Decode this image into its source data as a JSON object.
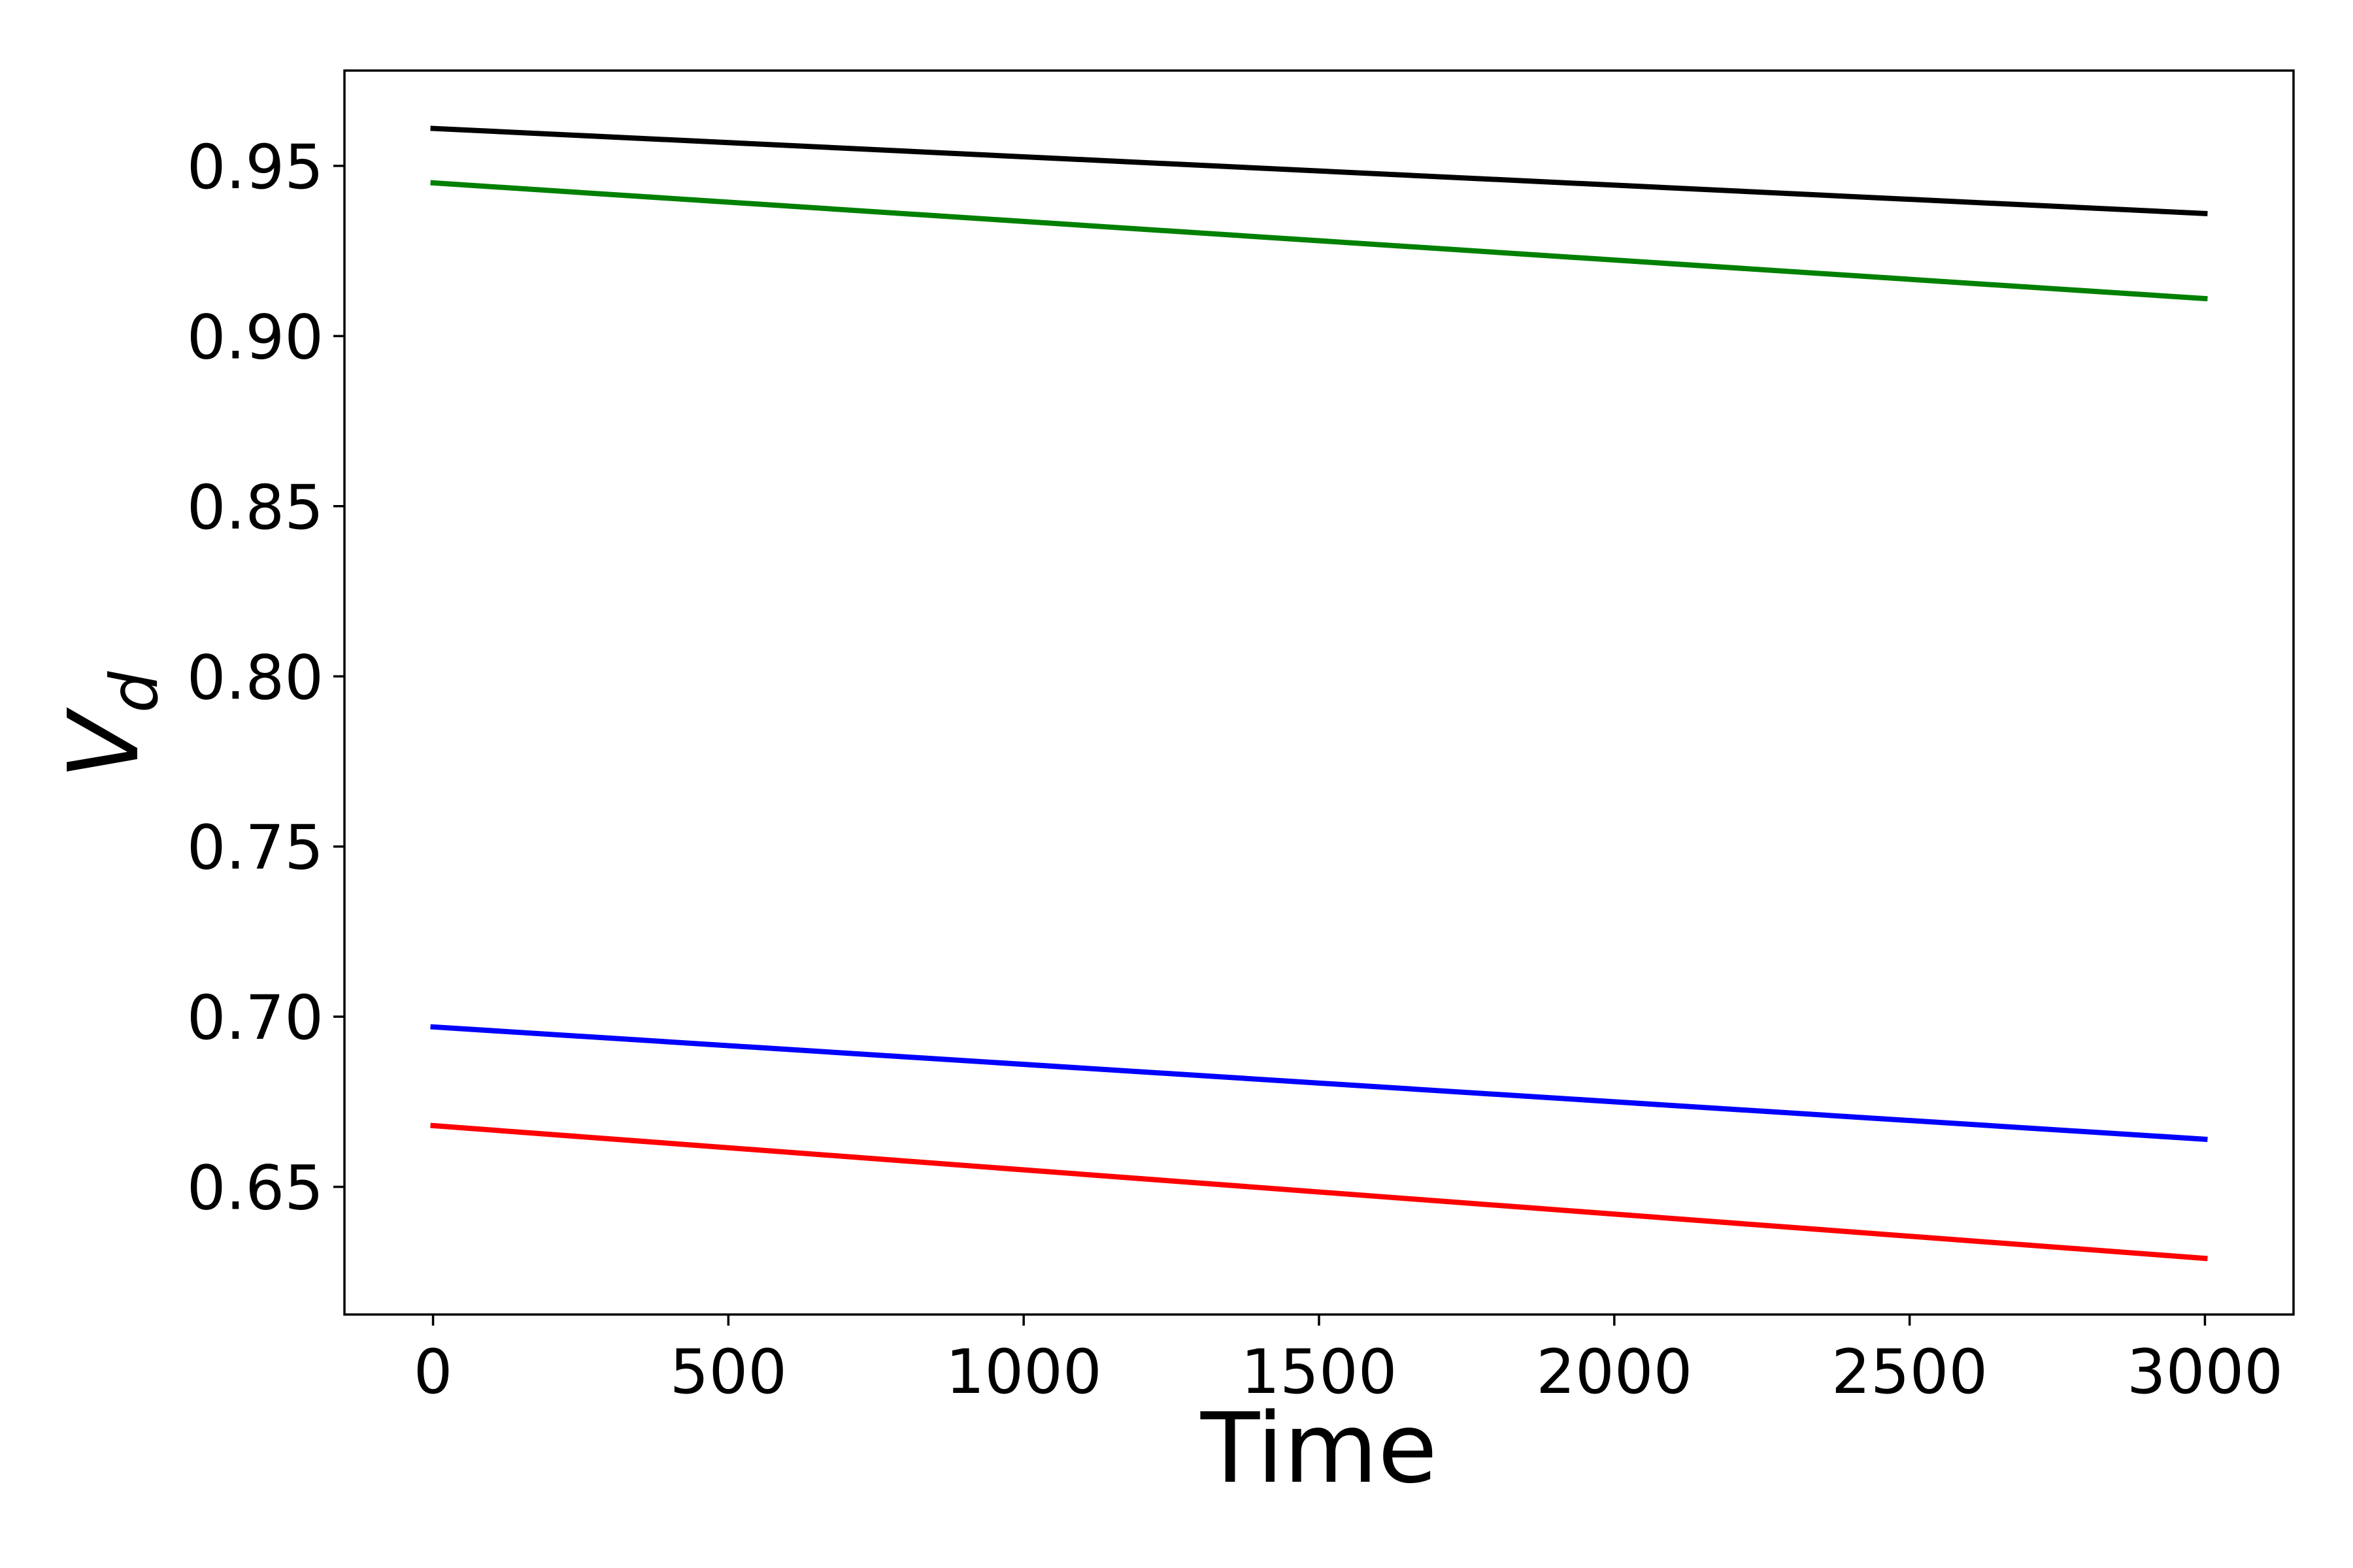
{
  "chart_data": {
    "type": "line",
    "title": "",
    "xlabel": "Time",
    "ylabel": {
      "main": "V",
      "sub": "d"
    },
    "xlim": [
      -150,
      3150
    ],
    "ylim": [
      0.6125,
      0.978
    ],
    "xticks": [
      0,
      500,
      1000,
      1500,
      2000,
      2500,
      3000
    ],
    "xtick_labels": [
      "0",
      "500",
      "1000",
      "1500",
      "2000",
      "2500",
      "3000"
    ],
    "yticks": [
      0.65,
      0.7,
      0.75,
      0.8,
      0.85,
      0.9,
      0.95
    ],
    "ytick_labels": [
      "0.65",
      "0.70",
      "0.75",
      "0.80",
      "0.85",
      "0.90",
      "0.95"
    ],
    "grid": false,
    "legend": "none",
    "series": [
      {
        "color": "#000000",
        "x": [
          0,
          3000
        ],
        "y": [
          0.961,
          0.936
        ]
      },
      {
        "color": "#008000",
        "x": [
          0,
          3000
        ],
        "y": [
          0.945,
          0.911
        ]
      },
      {
        "color": "#0000ff",
        "x": [
          0,
          3000
        ],
        "y": [
          0.697,
          0.664
        ]
      },
      {
        "color": "#ff0000",
        "x": [
          0,
          3000
        ],
        "y": [
          0.668,
          0.629
        ]
      }
    ]
  }
}
